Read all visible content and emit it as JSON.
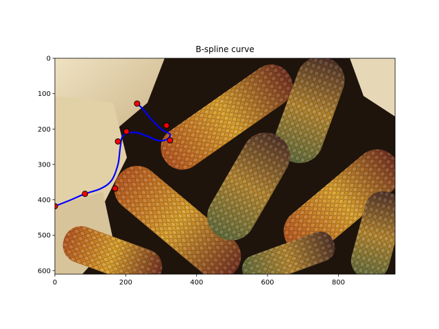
{
  "chart_data": {
    "type": "line",
    "title": "B-spline curve",
    "xlabel": "",
    "ylabel": "",
    "xlim": [
      0,
      960
    ],
    "ylim": [
      610,
      0
    ],
    "x_ticks": [
      0,
      200,
      400,
      600,
      800
    ],
    "x_tick_labels": [
      "0",
      "200",
      "400",
      "600",
      "800"
    ],
    "y_ticks": [
      0,
      100,
      200,
      300,
      400,
      500,
      600
    ],
    "y_tick_labels": [
      "0",
      "100",
      "200",
      "300",
      "400",
      "500",
      "600"
    ],
    "grid": false,
    "background_image": "ornamental-corn-cobs-photo",
    "series": [
      {
        "kind": "curve",
        "color": "#0000ff",
        "x": [
          0,
          45,
          85,
          130,
          160,
          178,
          184,
          190,
          205,
          230,
          260,
          290,
          315,
          325,
          300,
          270,
          245,
          232
        ],
        "y": [
          418,
          400,
          383,
          368,
          345,
          300,
          255,
          222,
          212,
          210,
          220,
          232,
          230,
          215,
          200,
          170,
          140,
          128
        ]
      },
      {
        "kind": "control_points",
        "color": "#ff0000",
        "edge_color": "#000000",
        "x": [
          0,
          85,
          170,
          178,
          202,
          232,
          315,
          325
        ],
        "y": [
          418,
          383,
          368,
          235,
          207,
          128,
          190,
          232
        ]
      }
    ]
  },
  "colors": {
    "curve": "#0000ff",
    "points": "#ff0000",
    "axes": "#000000",
    "background": "#ffffff"
  }
}
